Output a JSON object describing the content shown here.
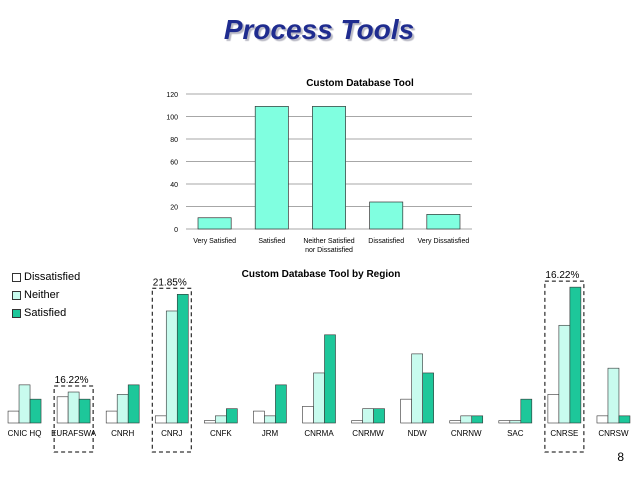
{
  "slide": {
    "title": "Process Tools",
    "page_number": "8"
  },
  "chart_data": [
    {
      "type": "bar",
      "title": "Custom Database Tool",
      "categories": [
        "Very Satisfied",
        "Satisfied",
        "Neither Satisfied nor Dissatisfied",
        "Dissatisfied",
        "Very Dissatisfied"
      ],
      "category_lines": [
        [
          "Very Satisfied"
        ],
        [
          "Satisfied"
        ],
        [
          "Neither Satisfied",
          "nor Dissatisfied"
        ],
        [
          "Dissatisfied"
        ],
        [
          "Very Dissatisfied"
        ]
      ],
      "values": [
        10,
        109,
        109,
        24,
        13
      ],
      "ylim": [
        0,
        120
      ],
      "yticks": [
        0,
        20,
        40,
        60,
        80,
        100,
        120
      ],
      "grid": true,
      "color": "#80ffe0"
    },
    {
      "type": "bar",
      "title": "Custom Database Tool by Region",
      "categories": [
        "CNIC HQ",
        "EURAFSWA",
        "CNRH",
        "CNRJ",
        "CNFK",
        "JRM",
        "CNRMA",
        "CNRMW",
        "NDW",
        "CNRNW",
        "SAC",
        "CNRSE",
        "CNRSW"
      ],
      "series": [
        {
          "name": "Dissatisfied",
          "color": "#ffffff",
          "values": [
            2.5,
            5.5,
            2.5,
            1.5,
            0.5,
            2.5,
            3.5,
            0.5,
            5,
            0.5,
            0.5,
            6,
            1.5
          ]
        },
        {
          "name": "Neither",
          "color": "#c8fbee",
          "values": [
            8,
            6.5,
            6,
            23.5,
            1.5,
            1.5,
            10.5,
            3,
            14.5,
            1.5,
            0.5,
            20.5,
            11.5
          ]
        },
        {
          "name": "Satisfied",
          "color": "#1dc79a",
          "values": [
            5,
            5,
            8,
            27,
            3,
            8,
            18.5,
            3,
            10.5,
            1.5,
            5,
            28.5,
            1.5
          ]
        }
      ],
      "ylim": [
        0,
        30
      ],
      "legend": "left",
      "annotations": [
        {
          "label": "16.22%",
          "category": "EURAFSWA"
        },
        {
          "label": "21.85%",
          "category": "CNRJ"
        },
        {
          "label": "16.22%",
          "category": "CNRSE"
        }
      ]
    }
  ]
}
